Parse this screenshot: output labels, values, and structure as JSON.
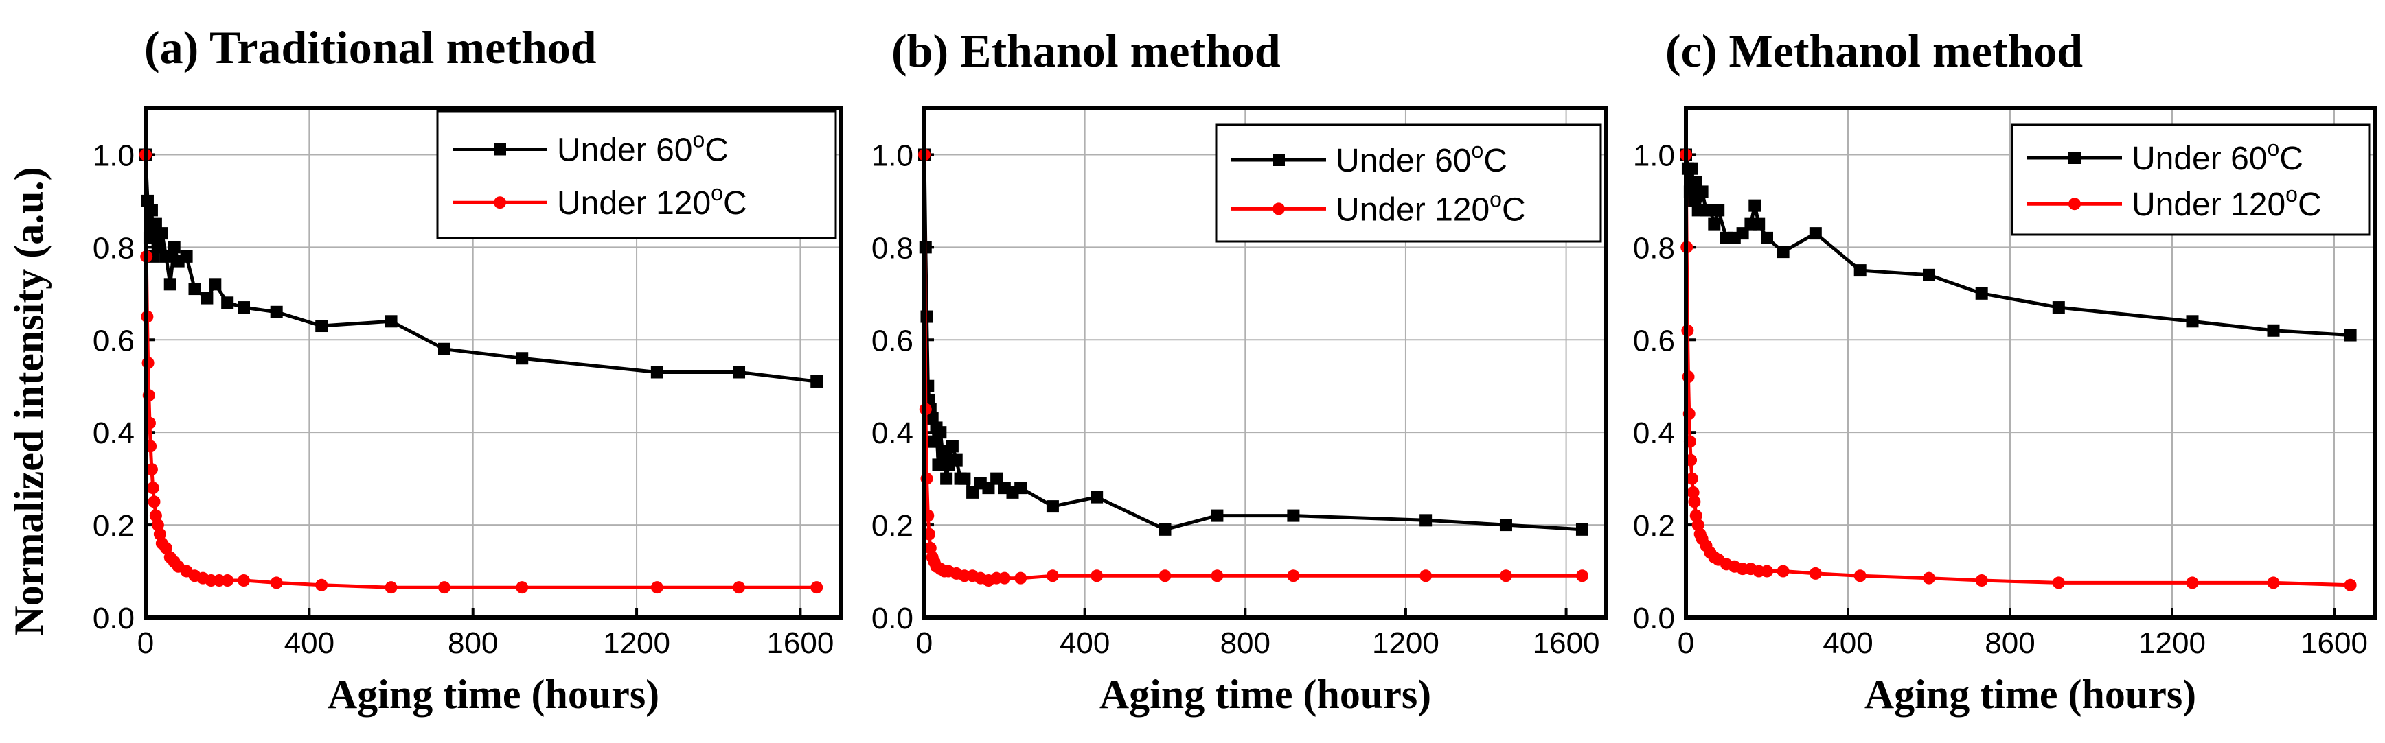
{
  "figure": {
    "ylabel": "Normalized intensity (a.u.)",
    "colors": {
      "series_60": "#000000",
      "series_120": "#ff0000",
      "axis": "#000000",
      "grid": "#b0b0b0",
      "background": "#ffffff"
    }
  },
  "chart_data": [
    {
      "type": "line",
      "panel": "a",
      "title": "(a) Traditional method",
      "xlabel": "Aging time (hours)",
      "ylabel": "Normalized intensity (a.u.)",
      "xlim": [
        0,
        1700
      ],
      "ylim": [
        0,
        1.1
      ],
      "xticks": [
        0,
        400,
        800,
        1200,
        1600
      ],
      "xtick_labels": [
        "0",
        "400",
        "800",
        "1200",
        "1600"
      ],
      "yticks": [
        0.0,
        0.2,
        0.4,
        0.6,
        0.8,
        1.0
      ],
      "ytick_labels": [
        "0.0",
        "0.2",
        "0.4",
        "0.6",
        "0.8",
        "1.0"
      ],
      "grid": true,
      "legend_position": "top-right",
      "series": [
        {
          "name": "Under 60",
          "unit": "C",
          "superscript": "o",
          "marker": "square",
          "color": "#000000",
          "x": [
            0,
            5,
            10,
            15,
            20,
            25,
            30,
            40,
            50,
            60,
            70,
            80,
            100,
            120,
            150,
            170,
            200,
            240,
            320,
            430,
            600,
            730,
            920,
            1250,
            1450,
            1640
          ],
          "y": [
            1.0,
            0.9,
            0.82,
            0.88,
            0.78,
            0.85,
            0.8,
            0.83,
            0.78,
            0.72,
            0.8,
            0.77,
            0.78,
            0.71,
            0.69,
            0.72,
            0.68,
            0.67,
            0.66,
            0.63,
            0.64,
            0.58,
            0.56,
            0.53,
            0.53,
            0.51
          ]
        },
        {
          "name": "Under 120",
          "unit": "C",
          "superscript": "o",
          "marker": "circle",
          "color": "#ff0000",
          "x": [
            0,
            2,
            4,
            6,
            8,
            10,
            12,
            15,
            18,
            21,
            25,
            30,
            35,
            40,
            50,
            60,
            70,
            80,
            100,
            120,
            140,
            160,
            180,
            200,
            240,
            320,
            430,
            600,
            730,
            920,
            1250,
            1450,
            1640
          ],
          "y": [
            1.0,
            0.78,
            0.65,
            0.55,
            0.48,
            0.42,
            0.37,
            0.32,
            0.28,
            0.25,
            0.22,
            0.2,
            0.18,
            0.16,
            0.15,
            0.13,
            0.12,
            0.11,
            0.1,
            0.09,
            0.085,
            0.08,
            0.08,
            0.08,
            0.08,
            0.075,
            0.07,
            0.065,
            0.065,
            0.065,
            0.065,
            0.065,
            0.065
          ]
        }
      ]
    },
    {
      "type": "line",
      "panel": "b",
      "title": "(b) Ethanol method",
      "xlabel": "Aging time (hours)",
      "ylabel": "",
      "xlim": [
        0,
        1700
      ],
      "ylim": [
        0,
        1.1
      ],
      "xticks": [
        0,
        400,
        800,
        1200,
        1600
      ],
      "xtick_labels": [
        "0",
        "400",
        "800",
        "1200",
        "1600"
      ],
      "yticks": [
        0.0,
        0.2,
        0.4,
        0.6,
        0.8,
        1.0
      ],
      "ytick_labels": [
        "0.0",
        "0.2",
        "0.4",
        "0.6",
        "0.8",
        "1.0"
      ],
      "grid": true,
      "legend_position": "top-right",
      "series": [
        {
          "name": "Under 60",
          "unit": "C",
          "superscript": "o",
          "marker": "square",
          "color": "#000000",
          "x": [
            0,
            3,
            6,
            9,
            12,
            15,
            20,
            25,
            30,
            35,
            40,
            45,
            50,
            55,
            60,
            70,
            80,
            90,
            100,
            120,
            140,
            160,
            180,
            200,
            220,
            240,
            320,
            430,
            600,
            730,
            920,
            1250,
            1450,
            1640
          ],
          "y": [
            1.0,
            0.8,
            0.65,
            0.5,
            0.47,
            0.45,
            0.43,
            0.38,
            0.41,
            0.33,
            0.4,
            0.36,
            0.35,
            0.3,
            0.33,
            0.37,
            0.34,
            0.3,
            0.3,
            0.27,
            0.29,
            0.28,
            0.3,
            0.28,
            0.27,
            0.28,
            0.24,
            0.26,
            0.19,
            0.22,
            0.22,
            0.21,
            0.2,
            0.19
          ]
        },
        {
          "name": "Under 120",
          "unit": "C",
          "superscript": "o",
          "marker": "circle",
          "color": "#ff0000",
          "x": [
            0,
            3,
            6,
            9,
            12,
            15,
            20,
            25,
            30,
            40,
            50,
            60,
            80,
            100,
            120,
            140,
            160,
            180,
            200,
            240,
            320,
            430,
            600,
            730,
            920,
            1250,
            1450,
            1640
          ],
          "y": [
            1.0,
            0.45,
            0.3,
            0.22,
            0.18,
            0.15,
            0.13,
            0.12,
            0.11,
            0.105,
            0.1,
            0.1,
            0.095,
            0.09,
            0.09,
            0.085,
            0.08,
            0.085,
            0.085,
            0.085,
            0.09,
            0.09,
            0.09,
            0.09,
            0.09,
            0.09,
            0.09,
            0.09
          ]
        }
      ]
    },
    {
      "type": "line",
      "panel": "c",
      "title": "(c) Methanol method",
      "xlabel": "Aging time (hours)",
      "ylabel": "",
      "xlim": [
        0,
        1700
      ],
      "ylim": [
        0,
        1.1
      ],
      "xticks": [
        0,
        400,
        800,
        1200,
        1600
      ],
      "xtick_labels": [
        "0",
        "400",
        "800",
        "1200",
        "1600"
      ],
      "yticks": [
        0.0,
        0.2,
        0.4,
        0.6,
        0.8,
        1.0
      ],
      "ytick_labels": [
        "0.0",
        "0.2",
        "0.4",
        "0.6",
        "0.8",
        "1.0"
      ],
      "grid": true,
      "legend_position": "top-right",
      "series": [
        {
          "name": "Under 60",
          "unit": "C",
          "superscript": "o",
          "marker": "square",
          "color": "#000000",
          "x": [
            0,
            5,
            10,
            15,
            20,
            25,
            30,
            40,
            50,
            60,
            70,
            80,
            100,
            120,
            140,
            160,
            170,
            180,
            200,
            240,
            320,
            430,
            600,
            730,
            920,
            1250,
            1450,
            1640
          ],
          "y": [
            1.0,
            0.97,
            0.92,
            0.97,
            0.9,
            0.94,
            0.88,
            0.92,
            0.88,
            0.88,
            0.85,
            0.88,
            0.82,
            0.82,
            0.83,
            0.85,
            0.89,
            0.85,
            0.82,
            0.79,
            0.83,
            0.75,
            0.74,
            0.7,
            0.67,
            0.64,
            0.62,
            0.61
          ]
        },
        {
          "name": "Under 120",
          "unit": "C",
          "superscript": "o",
          "marker": "circle",
          "color": "#ff0000",
          "x": [
            0,
            2,
            4,
            6,
            8,
            10,
            12,
            15,
            18,
            21,
            25,
            30,
            35,
            40,
            50,
            60,
            70,
            80,
            100,
            120,
            140,
            160,
            180,
            200,
            240,
            320,
            430,
            600,
            730,
            920,
            1250,
            1450,
            1640
          ],
          "y": [
            1.0,
            0.8,
            0.62,
            0.52,
            0.44,
            0.38,
            0.34,
            0.3,
            0.27,
            0.25,
            0.22,
            0.2,
            0.18,
            0.17,
            0.155,
            0.14,
            0.13,
            0.125,
            0.115,
            0.11,
            0.105,
            0.105,
            0.1,
            0.1,
            0.1,
            0.095,
            0.09,
            0.085,
            0.08,
            0.075,
            0.075,
            0.075,
            0.07
          ]
        }
      ]
    }
  ]
}
